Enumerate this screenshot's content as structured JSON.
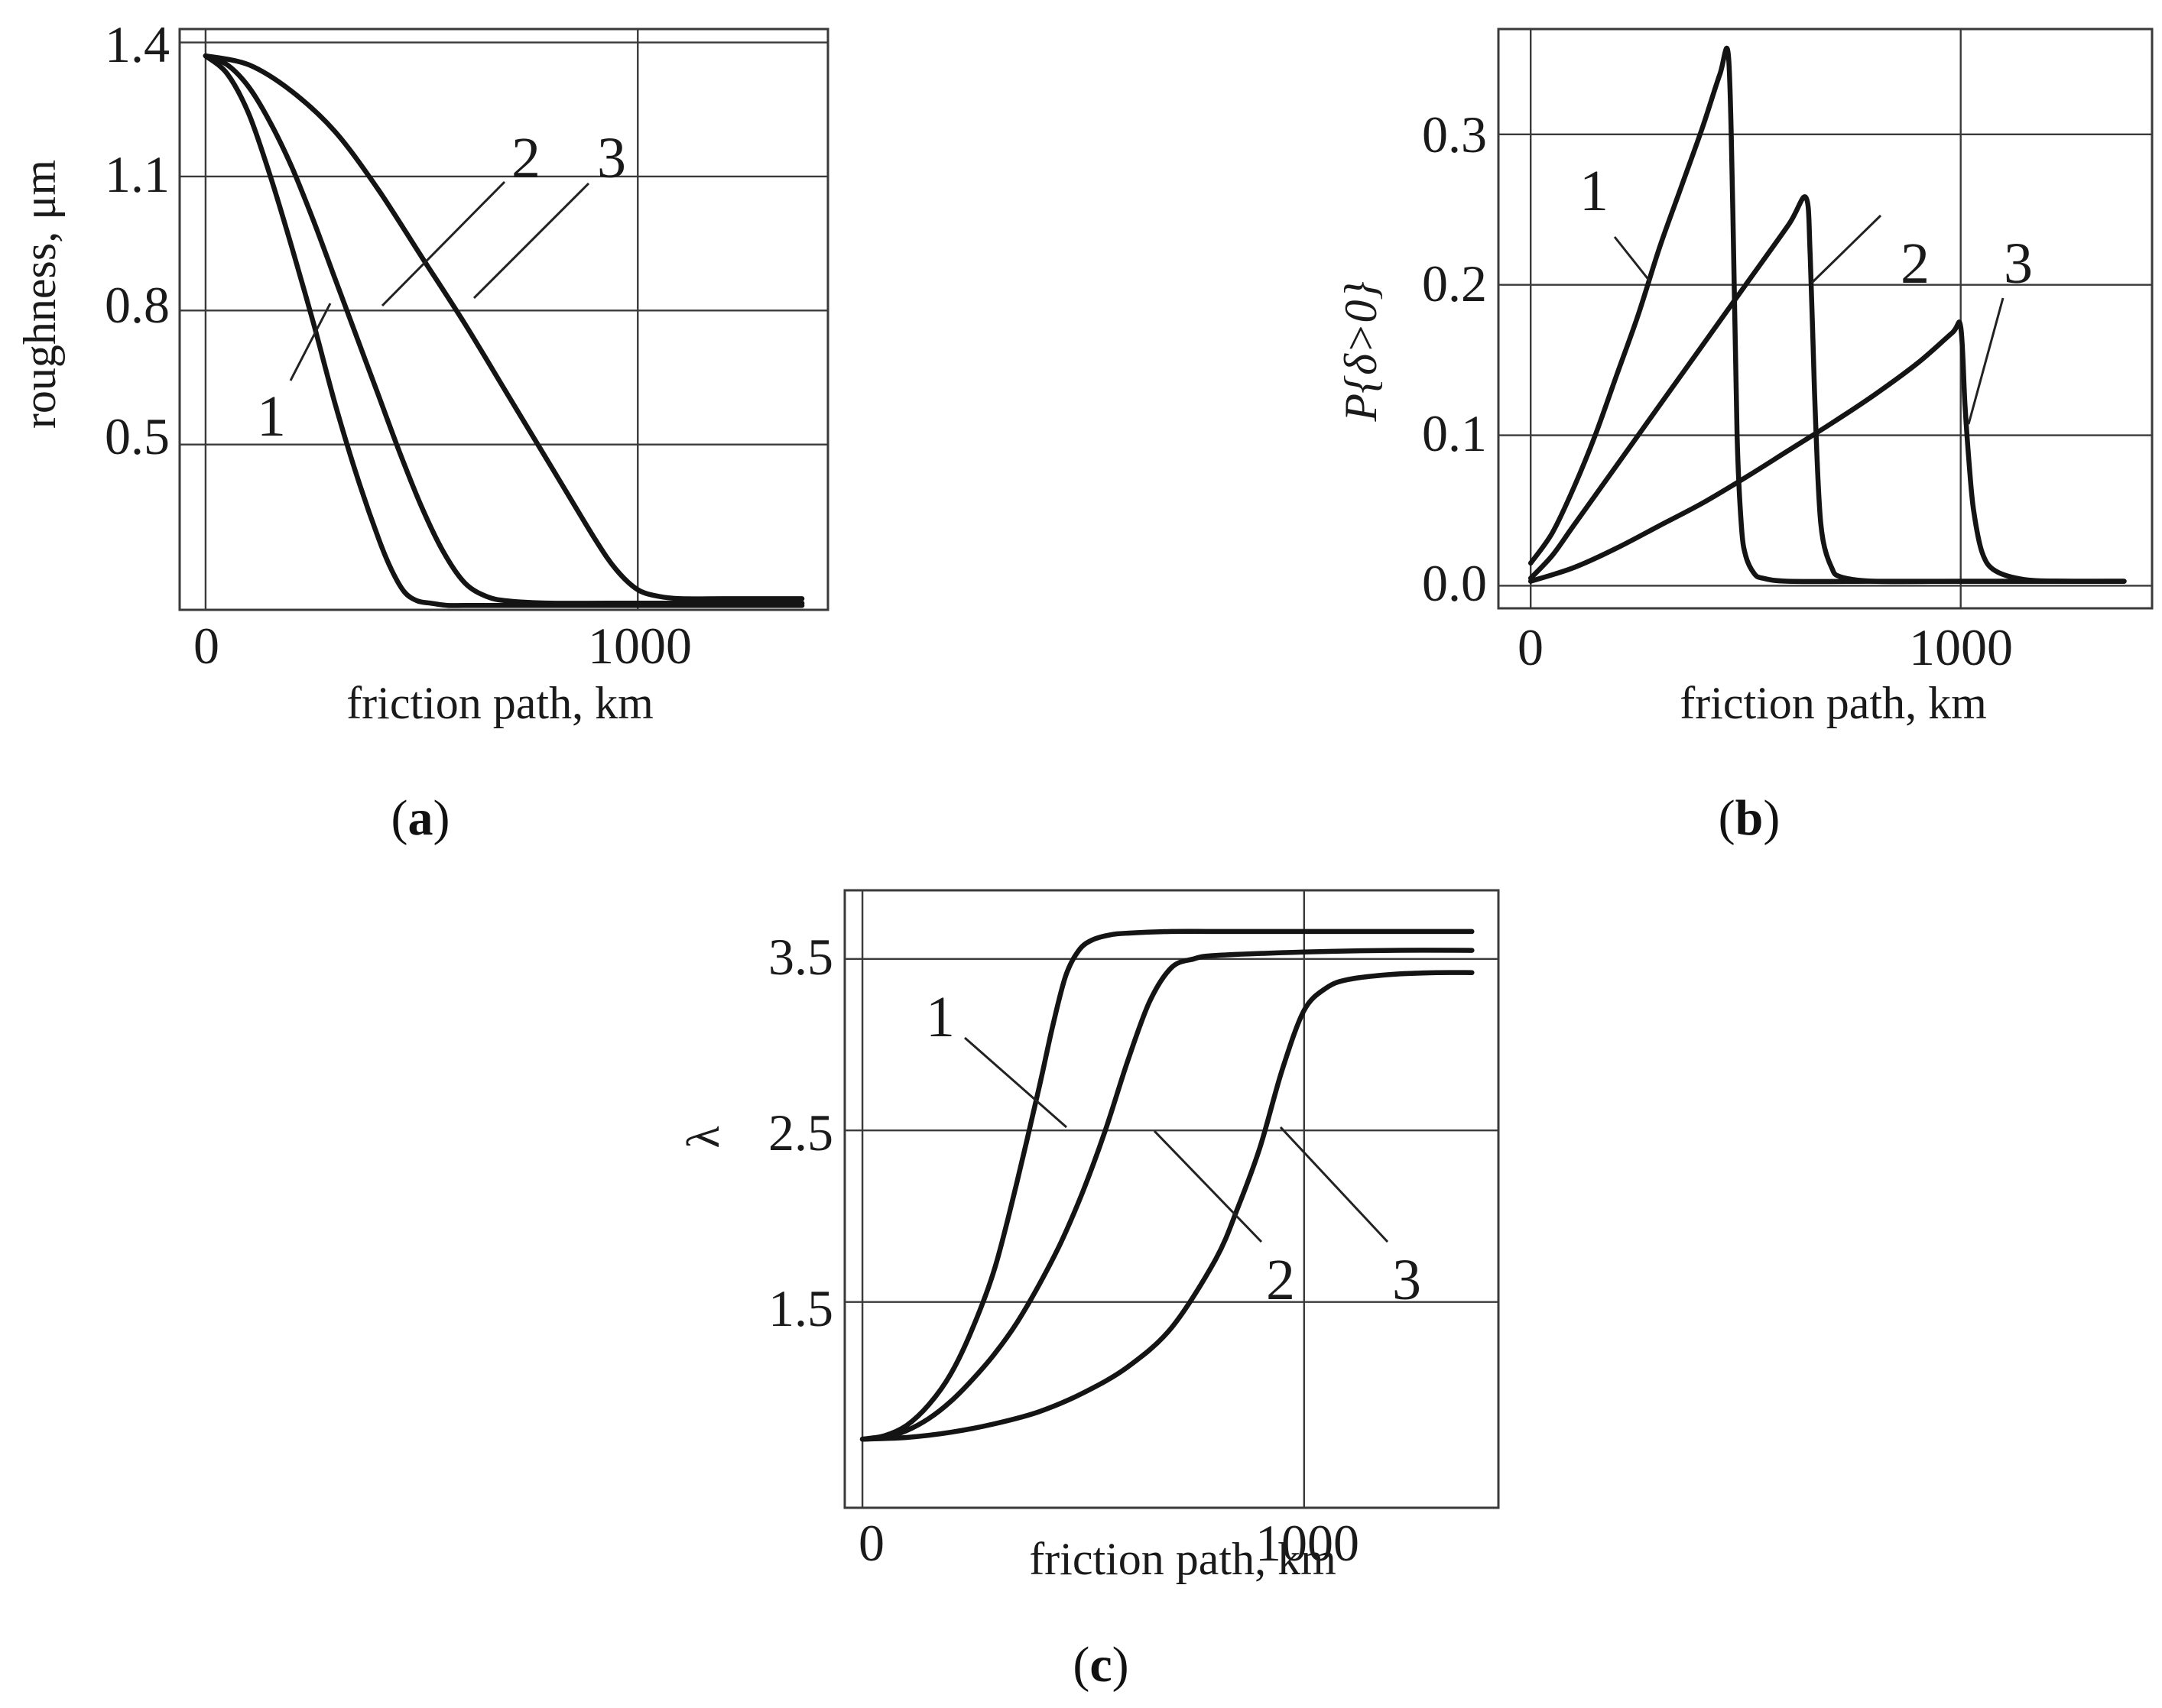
{
  "chart_data": [
    {
      "id": "a",
      "type": "line",
      "panel_label": "a",
      "xlabel": "friction path, km",
      "ylabel": "roughness, μm",
      "xlim": [
        -60,
        1440
      ],
      "ylim": [
        0.13,
        1.43
      ],
      "xticks": [
        0,
        1000
      ],
      "yticks": [
        0.5,
        0.8,
        1.1,
        1.4
      ],
      "ytick_labels": [
        "0.5",
        "0.8",
        "1.1",
        "1.4"
      ],
      "grid": true,
      "series": [
        {
          "name": "1",
          "x": [
            0,
            50,
            100,
            150,
            200,
            250,
            300,
            350,
            400,
            430,
            460,
            490,
            520,
            560,
            600,
            700,
            800,
            1000,
            1200,
            1380
          ],
          "y": [
            1.37,
            1.33,
            1.24,
            1.1,
            0.94,
            0.77,
            0.59,
            0.43,
            0.29,
            0.22,
            0.17,
            0.15,
            0.145,
            0.14,
            0.14,
            0.14,
            0.14,
            0.14,
            0.14,
            0.14
          ]
        },
        {
          "name": "2",
          "x": [
            0,
            50,
            100,
            150,
            200,
            250,
            300,
            350,
            400,
            450,
            500,
            550,
            600,
            650,
            700,
            800,
            1000,
            1200,
            1380
          ],
          "y": [
            1.37,
            1.35,
            1.3,
            1.22,
            1.12,
            1.0,
            0.87,
            0.74,
            0.61,
            0.48,
            0.36,
            0.26,
            0.19,
            0.16,
            0.15,
            0.145,
            0.145,
            0.145,
            0.145
          ]
        },
        {
          "name": "3",
          "x": [
            0,
            100,
            200,
            300,
            400,
            500,
            600,
            700,
            800,
            900,
            950,
            1000,
            1050,
            1100,
            1200,
            1300,
            1380
          ],
          "y": [
            1.37,
            1.35,
            1.29,
            1.2,
            1.07,
            0.92,
            0.77,
            0.61,
            0.45,
            0.29,
            0.22,
            0.175,
            0.16,
            0.155,
            0.155,
            0.155,
            0.155
          ]
        }
      ],
      "annotations": [
        "1",
        "2",
        "3"
      ]
    },
    {
      "id": "b",
      "type": "line",
      "panel_label": "b",
      "xlabel": "friction path, km",
      "ylabel": "P{δ>0}",
      "xlim": [
        -75,
        1445
      ],
      "ylim": [
        -0.015,
        0.37
      ],
      "xticks": [
        0,
        1000
      ],
      "yticks": [
        0.0,
        0.1,
        0.2,
        0.3
      ],
      "ytick_labels": [
        "0.0",
        "0.1",
        "0.2",
        "0.3"
      ],
      "grid": true,
      "series": [
        {
          "name": "1",
          "x": [
            0,
            50,
            100,
            150,
            200,
            250,
            300,
            350,
            400,
            440,
            460,
            470,
            480,
            490,
            500,
            520,
            540,
            600,
            800,
            1000,
            1200,
            1380
          ],
          "y": [
            0.015,
            0.035,
            0.065,
            0.1,
            0.14,
            0.18,
            0.225,
            0.265,
            0.305,
            0.34,
            0.352,
            0.25,
            0.1,
            0.04,
            0.02,
            0.008,
            0.005,
            0.003,
            0.003,
            0.003,
            0.003,
            0.003
          ]
        },
        {
          "name": "2",
          "x": [
            0,
            50,
            100,
            200,
            300,
            400,
            500,
            600,
            640,
            650,
            660,
            670,
            680,
            700,
            720,
            800,
            1000,
            1200,
            1380
          ],
          "y": [
            0.005,
            0.02,
            0.04,
            0.08,
            0.12,
            0.16,
            0.2,
            0.24,
            0.258,
            0.22,
            0.13,
            0.06,
            0.03,
            0.012,
            0.006,
            0.003,
            0.003,
            0.003,
            0.003
          ]
        },
        {
          "name": "3",
          "x": [
            0,
            100,
            200,
            300,
            400,
            500,
            600,
            700,
            800,
            900,
            980,
            1000,
            1010,
            1020,
            1030,
            1050,
            1080,
            1150,
            1250,
            1380
          ],
          "y": [
            0.003,
            0.012,
            0.025,
            0.04,
            0.055,
            0.072,
            0.09,
            0.108,
            0.127,
            0.148,
            0.168,
            0.172,
            0.12,
            0.08,
            0.05,
            0.022,
            0.01,
            0.004,
            0.003,
            0.003
          ]
        }
      ],
      "annotations": [
        "1",
        "2",
        "3"
      ]
    },
    {
      "id": "c",
      "type": "line",
      "panel_label": "c",
      "xlabel": "friction path, km",
      "ylabel": "λ",
      "xlim": [
        -40,
        1440
      ],
      "ylim": [
        0.3,
        3.9
      ],
      "xticks": [
        0,
        1000
      ],
      "yticks": [
        1.5,
        2.5,
        3.5
      ],
      "ytick_labels": [
        "1.5",
        "2.5",
        "3.5"
      ],
      "grid": true,
      "series": [
        {
          "name": "1",
          "x": [
            0,
            50,
            100,
            150,
            200,
            250,
            300,
            350,
            400,
            430,
            460,
            490,
            520,
            560,
            600,
            700,
            800,
            1000,
            1200,
            1380
          ],
          "y": [
            0.7,
            0.72,
            0.78,
            0.9,
            1.08,
            1.35,
            1.7,
            2.2,
            2.75,
            3.1,
            3.4,
            3.55,
            3.61,
            3.64,
            3.65,
            3.66,
            3.66,
            3.66,
            3.66,
            3.66
          ]
        },
        {
          "name": "2",
          "x": [
            0,
            50,
            100,
            150,
            200,
            250,
            300,
            350,
            400,
            450,
            500,
            550,
            600,
            650,
            700,
            750,
            800,
            1000,
            1200,
            1380
          ],
          "y": [
            0.7,
            0.71,
            0.75,
            0.82,
            0.92,
            1.05,
            1.2,
            1.38,
            1.6,
            1.85,
            2.15,
            2.5,
            2.9,
            3.25,
            3.45,
            3.5,
            3.52,
            3.54,
            3.55,
            3.55
          ]
        },
        {
          "name": "3",
          "x": [
            0,
            100,
            200,
            300,
            400,
            500,
            600,
            700,
            800,
            850,
            900,
            950,
            1000,
            1050,
            1100,
            1200,
            1300,
            1380
          ],
          "y": [
            0.7,
            0.71,
            0.74,
            0.79,
            0.86,
            0.97,
            1.12,
            1.35,
            1.75,
            2.05,
            2.4,
            2.85,
            3.2,
            3.33,
            3.38,
            3.41,
            3.42,
            3.42
          ]
        }
      ],
      "annotations": [
        "1",
        "2",
        "3"
      ]
    }
  ]
}
